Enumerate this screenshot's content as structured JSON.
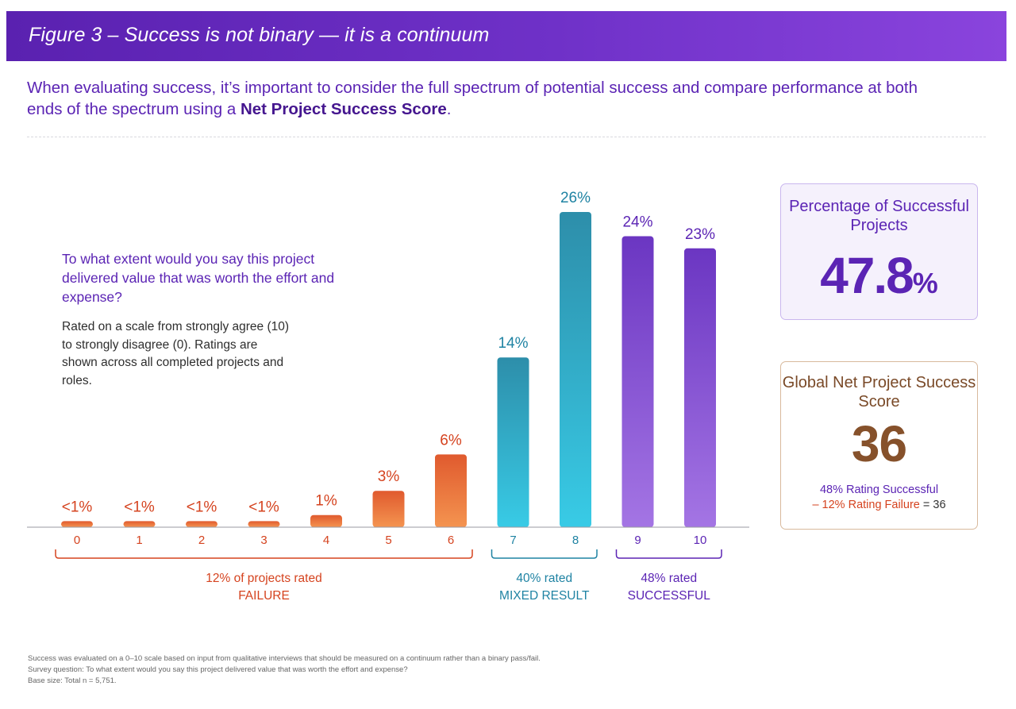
{
  "header": {
    "title": "Figure 3 – Success is not binary — it is a continuum"
  },
  "intro": {
    "text_before": "When evaluating success, it’s important to consider the full spectrum of potential success and compare performance at both ends of the spectrum using a ",
    "text_bold": "Net Project Success Score",
    "text_after": "."
  },
  "question": {
    "text": "To what extent would you say this project delivered value that was worth the effort and expense?",
    "note": "Rated on a scale from strongly agree (10) to strongly disagree (0). Ratings are shown across all completed projects and roles."
  },
  "chart_data": {
    "type": "bar",
    "categories": [
      "0",
      "1",
      "2",
      "3",
      "4",
      "5",
      "6",
      "7",
      "8",
      "9",
      "10"
    ],
    "values": [
      0.5,
      0.5,
      0.5,
      0.5,
      1,
      3,
      6,
      14,
      26,
      24,
      23
    ],
    "value_labels": [
      "<1%",
      "<1%",
      "<1%",
      "<1%",
      "1%",
      "3%",
      "6%",
      "14%",
      "26%",
      "24%",
      "23%"
    ],
    "groups": [
      {
        "name": "failure",
        "label_line1": "12% of projects rated",
        "label_line2": "FAILURE",
        "from": 0,
        "to": 6,
        "color": "#d5431f",
        "bar_top": "#e05a2e",
        "bar_bottom": "#f49450"
      },
      {
        "name": "mixed",
        "label_line1": "40% rated",
        "label_line2": "MIXED RESULT",
        "from": 7,
        "to": 8,
        "color": "#1f83a3",
        "bar_top": "#2d8eaa",
        "bar_bottom": "#38cbe6"
      },
      {
        "name": "successful",
        "label_line1": "48% rated",
        "label_line2": "SUCCESSFUL",
        "from": 9,
        "to": 10,
        "color": "#5b24b4",
        "bar_top": "#6b36c2",
        "bar_bottom": "#a475e4"
      }
    ],
    "ylim": [
      0,
      26
    ],
    "xlabel": "",
    "ylabel": "",
    "grid": false,
    "legend": "none"
  },
  "kpis": {
    "success": {
      "title": "Percentage of Successful Projects",
      "value": "47.8",
      "unit": "%"
    },
    "nps": {
      "title": "Global Net Project Success Score",
      "value": "36",
      "line1": "48% Rating Successful",
      "line2_red": "– 12% Rating Failure",
      "line2_rest": " = 36"
    }
  },
  "footnotes": [
    "Success was evaluated on a 0–10 scale based on input from qualitative interviews that should be measured on a continuum rather than a binary pass/fail.",
    "Survey question: To what extent would you say this project delivered value that was worth the effort and expense?",
    "Base size: Total n = 5,751."
  ],
  "colors": {
    "header_start": "#5a21b0",
    "header_end": "#8a44dd",
    "purple_text": "#5b24b4",
    "red_text": "#d5431f",
    "teal_text": "#1f83a3",
    "brown_text": "#86512b"
  }
}
